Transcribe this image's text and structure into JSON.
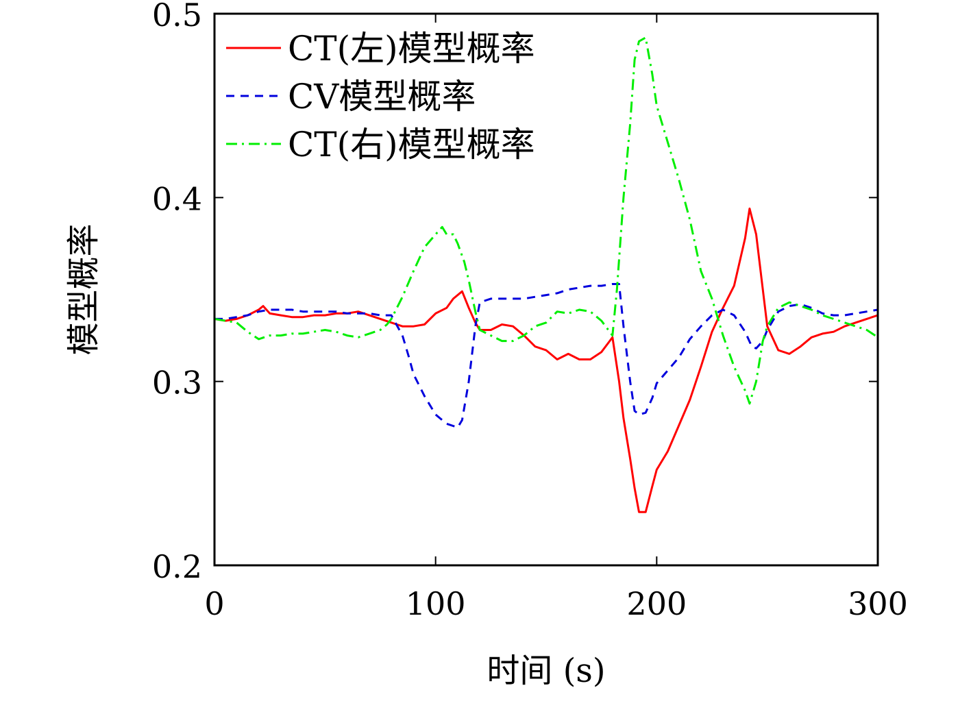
{
  "chart_data": {
    "type": "line",
    "title": "",
    "xlabel": "时间 (s)",
    "ylabel": "模型概率",
    "xlim": [
      0,
      300
    ],
    "ylim": [
      0.2,
      0.5
    ],
    "xticks": [
      0,
      100,
      200,
      300
    ],
    "xtick_labels": [
      "0",
      "100",
      "200",
      "300"
    ],
    "yticks": [
      0.2,
      0.3,
      0.4,
      0.5
    ],
    "ytick_labels": [
      "0.2",
      "0.3",
      "0.4",
      "0.5"
    ],
    "grid": false,
    "legend_position": "top-left",
    "series": [
      {
        "name": "CT(左)模型概率",
        "color": "#ff0000",
        "dash": "solid",
        "x": [
          0,
          5,
          10,
          15,
          20,
          22,
          25,
          30,
          35,
          40,
          45,
          50,
          55,
          60,
          65,
          70,
          75,
          80,
          85,
          90,
          95,
          100,
          105,
          108,
          112,
          115,
          118,
          120,
          125,
          130,
          135,
          140,
          145,
          150,
          155,
          160,
          165,
          170,
          175,
          180,
          183,
          185,
          188,
          190,
          192,
          195,
          198,
          200,
          205,
          210,
          215,
          220,
          225,
          230,
          235,
          240,
          242,
          245,
          248,
          250,
          255,
          260,
          265,
          270,
          275,
          280,
          285,
          290,
          295,
          300
        ],
        "y": [
          0.334,
          0.333,
          0.334,
          0.336,
          0.339,
          0.341,
          0.337,
          0.336,
          0.335,
          0.335,
          0.336,
          0.336,
          0.337,
          0.337,
          0.338,
          0.336,
          0.334,
          0.332,
          0.33,
          0.33,
          0.331,
          0.337,
          0.34,
          0.345,
          0.349,
          0.34,
          0.332,
          0.328,
          0.328,
          0.331,
          0.33,
          0.325,
          0.319,
          0.317,
          0.312,
          0.315,
          0.312,
          0.312,
          0.316,
          0.324,
          0.3,
          0.28,
          0.258,
          0.242,
          0.229,
          0.229,
          0.243,
          0.252,
          0.262,
          0.276,
          0.29,
          0.308,
          0.327,
          0.34,
          0.352,
          0.378,
          0.394,
          0.38,
          0.35,
          0.33,
          0.317,
          0.315,
          0.319,
          0.324,
          0.326,
          0.327,
          0.33,
          0.332,
          0.334,
          0.336
        ]
      },
      {
        "name": "CV模型概率",
        "color": "#0000dd",
        "dash": "dashed",
        "x": [
          0,
          5,
          10,
          15,
          20,
          25,
          30,
          35,
          40,
          45,
          50,
          55,
          60,
          65,
          70,
          75,
          80,
          85,
          88,
          90,
          95,
          100,
          105,
          110,
          112,
          115,
          118,
          120,
          125,
          130,
          135,
          140,
          145,
          150,
          155,
          160,
          165,
          170,
          175,
          180,
          183,
          185,
          188,
          190,
          192,
          195,
          198,
          200,
          205,
          210,
          215,
          220,
          225,
          230,
          235,
          240,
          243,
          245,
          248,
          250,
          255,
          260,
          265,
          270,
          275,
          280,
          285,
          290,
          295,
          300
        ],
        "y": [
          0.334,
          0.334,
          0.335,
          0.336,
          0.338,
          0.339,
          0.339,
          0.339,
          0.338,
          0.338,
          0.338,
          0.338,
          0.337,
          0.337,
          0.337,
          0.336,
          0.336,
          0.325,
          0.313,
          0.304,
          0.292,
          0.282,
          0.277,
          0.275,
          0.279,
          0.3,
          0.33,
          0.343,
          0.345,
          0.345,
          0.345,
          0.345,
          0.346,
          0.347,
          0.348,
          0.35,
          0.351,
          0.352,
          0.352,
          0.353,
          0.353,
          0.33,
          0.3,
          0.284,
          0.282,
          0.283,
          0.291,
          0.299,
          0.306,
          0.313,
          0.323,
          0.33,
          0.336,
          0.339,
          0.336,
          0.327,
          0.319,
          0.318,
          0.322,
          0.328,
          0.338,
          0.341,
          0.342,
          0.34,
          0.337,
          0.336,
          0.336,
          0.337,
          0.338,
          0.339
        ]
      },
      {
        "name": "CT(右)模型概率",
        "color": "#00ee00",
        "dash": "dashdot",
        "x": [
          0,
          5,
          10,
          15,
          20,
          25,
          30,
          35,
          40,
          45,
          50,
          55,
          60,
          65,
          70,
          75,
          78,
          80,
          85,
          90,
          95,
          100,
          103,
          105,
          108,
          110,
          113,
          115,
          118,
          120,
          125,
          130,
          135,
          140,
          145,
          150,
          155,
          160,
          165,
          170,
          175,
          180,
          182,
          185,
          188,
          190,
          192,
          195,
          198,
          200,
          205,
          210,
          215,
          220,
          225,
          230,
          235,
          240,
          242,
          245,
          248,
          250,
          255,
          260,
          265,
          270,
          275,
          280,
          285,
          290,
          295,
          300
        ],
        "y": [
          0.334,
          0.333,
          0.332,
          0.327,
          0.323,
          0.325,
          0.325,
          0.326,
          0.326,
          0.327,
          0.328,
          0.327,
          0.325,
          0.324,
          0.326,
          0.328,
          0.331,
          0.334,
          0.346,
          0.36,
          0.373,
          0.38,
          0.384,
          0.38,
          0.38,
          0.375,
          0.365,
          0.355,
          0.338,
          0.328,
          0.325,
          0.322,
          0.322,
          0.325,
          0.33,
          0.332,
          0.338,
          0.337,
          0.339,
          0.338,
          0.333,
          0.325,
          0.35,
          0.4,
          0.44,
          0.475,
          0.485,
          0.487,
          0.467,
          0.45,
          0.43,
          0.41,
          0.388,
          0.36,
          0.345,
          0.325,
          0.308,
          0.295,
          0.288,
          0.3,
          0.322,
          0.33,
          0.34,
          0.343,
          0.341,
          0.339,
          0.336,
          0.334,
          0.332,
          0.33,
          0.328,
          0.324
        ]
      }
    ]
  }
}
